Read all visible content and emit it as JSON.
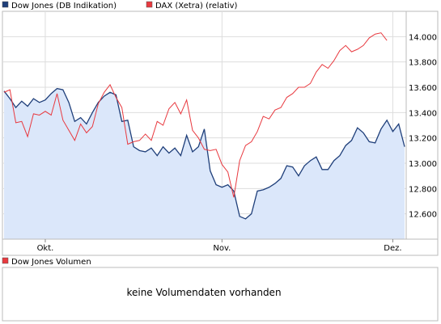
{
  "chart_data": [
    {
      "type": "line",
      "legend": [
        {
          "name": "Dow Jones (DB Indikation)",
          "color": "#1f3f7a"
        },
        {
          "name": "DAX (Xetra) (relativ)",
          "color": "#e8393f"
        }
      ],
      "x_ticks": [
        "Okt.",
        "Nov.",
        "Dez."
      ],
      "x_tick_index": [
        7,
        37,
        66
      ],
      "ylim": [
        12400,
        14200
      ],
      "y_ticks": [
        12600,
        12800,
        13000,
        13200,
        13400,
        13600,
        13800,
        14000
      ],
      "y_tick_labels": [
        "12.600",
        "12.800",
        "13.000",
        "13.200",
        "13.400",
        "13.600",
        "13.800",
        "14.000"
      ],
      "grid": true,
      "area_fill_color": "#dbe7fa",
      "series": [
        {
          "name": "Dow Jones (DB Indikation)",
          "color": "#1f3f7a",
          "values": [
            13570,
            13510,
            13440,
            13490,
            13450,
            13510,
            13480,
            13500,
            13550,
            13590,
            13580,
            13480,
            13330,
            13360,
            13310,
            13400,
            13480,
            13530,
            13560,
            13540,
            13330,
            13340,
            13130,
            13100,
            13090,
            13120,
            13060,
            13130,
            13080,
            13120,
            13060,
            13220,
            13090,
            13130,
            13270,
            12940,
            12830,
            12810,
            12830,
            12780,
            12580,
            12560,
            12600,
            12780,
            12790,
            12810,
            12840,
            12880,
            12980,
            12970,
            12900,
            12980,
            13020,
            13050,
            12950,
            12950,
            13020,
            13060,
            13140,
            13180,
            13280,
            13240,
            13170,
            13160,
            13270,
            13340,
            13250,
            13310,
            13130
          ]
        },
        {
          "name": "DAX (Xetra) (relativ)",
          "color": "#e8393f",
          "values": [
            13560,
            13580,
            13320,
            13330,
            13210,
            13390,
            13380,
            13410,
            13380,
            13550,
            13340,
            13260,
            13180,
            13310,
            13240,
            13290,
            13470,
            13560,
            13620,
            13520,
            13440,
            13150,
            13170,
            13180,
            13230,
            13180,
            13330,
            13300,
            13430,
            13480,
            13390,
            13500,
            13260,
            13200,
            13110,
            13100,
            13110,
            12990,
            12930,
            12730,
            13020,
            13140,
            13170,
            13250,
            13370,
            13350,
            13420,
            13440,
            13520,
            13550,
            13600,
            13600,
            13630,
            13720,
            13780,
            13750,
            13810,
            13890,
            13930,
            13880,
            13900,
            13930,
            13990,
            14020,
            14030,
            13970
          ]
        }
      ]
    },
    {
      "type": "bar",
      "legend": [
        {
          "name": "Dow Jones Volumen",
          "color": "#e8393f"
        }
      ],
      "message": "keine Volumendaten vorhanden"
    }
  ]
}
